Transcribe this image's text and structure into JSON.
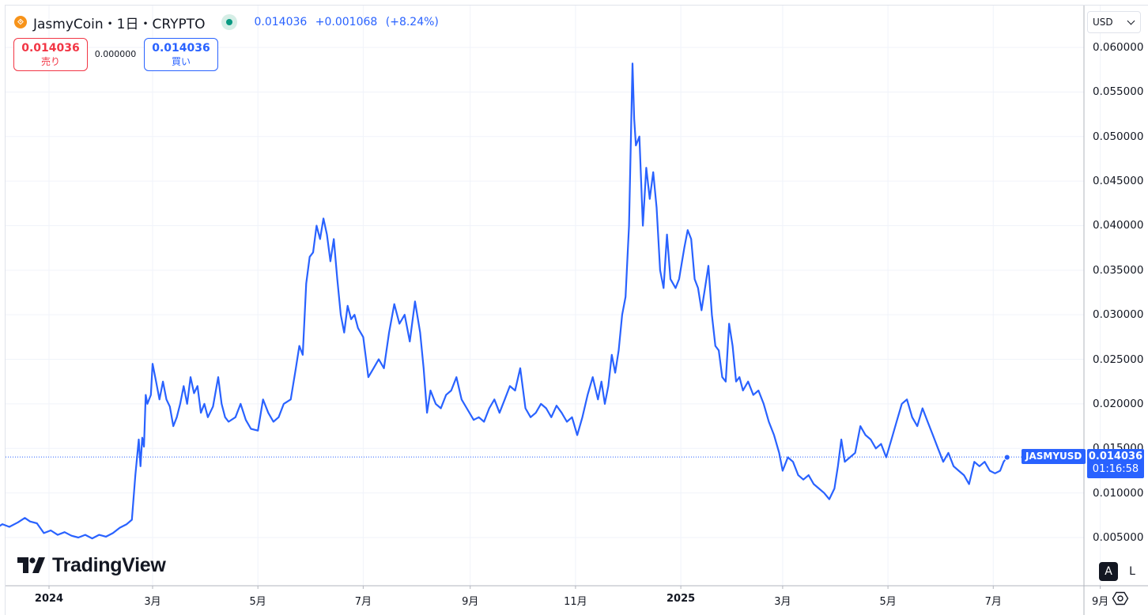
{
  "legend": {
    "coin_icon": "jasmy-coin-icon",
    "symbol": "JasmyCoin・1日・CRYPTO",
    "last": "0.014036",
    "change": "+0.001068",
    "change_pct": "(+8.24%)",
    "status": "market-open"
  },
  "trade": {
    "sell_price": "0.014036",
    "sell_label": "売り",
    "spread": "0.000000",
    "buy_price": "0.014036",
    "buy_label": "買い"
  },
  "currency": "USD",
  "price_tag": {
    "symbol": "JASMYUSD",
    "price": "0.014036",
    "countdown": "01:16:58"
  },
  "logo_text": "TradingView",
  "scale_buttons": {
    "auto": "A",
    "log": "L"
  },
  "colors": {
    "line": "#2962ff",
    "sell": "#f23645",
    "buy": "#2962ff",
    "grid": "#f0f3fa"
  },
  "chart_data": {
    "type": "line",
    "title": "JasmyCoin・1日・CRYPTO",
    "xlabel": "",
    "ylabel": "",
    "ylim": [
      0.0025,
      0.0625
    ],
    "y_ticks": [
      "0.060000",
      "0.055000",
      "0.050000",
      "0.045000",
      "0.040000",
      "0.035000",
      "0.030000",
      "0.025000",
      "0.020000",
      "0.015000",
      "0.010000",
      "0.005000"
    ],
    "x_tick_labels": [
      {
        "date": "2024-01-01",
        "label": "2024",
        "bold": true
      },
      {
        "date": "2024-03-01",
        "label": "3月"
      },
      {
        "date": "2024-05-01",
        "label": "5月"
      },
      {
        "date": "2024-07-01",
        "label": "7月"
      },
      {
        "date": "2024-09-01",
        "label": "9月"
      },
      {
        "date": "2024-11-01",
        "label": "11月"
      },
      {
        "date": "2025-01-01",
        "label": "2025",
        "bold": true
      },
      {
        "date": "2025-03-01",
        "label": "3月"
      },
      {
        "date": "2025-05-01",
        "label": "5月"
      },
      {
        "date": "2025-07-01",
        "label": "7月"
      },
      {
        "date": "2025-09-01",
        "label": "9月"
      }
    ],
    "grid": true,
    "series": [
      {
        "name": "JASMYUSD",
        "points": [
          [
            "2023-11-20",
            0.0049
          ],
          [
            "2023-11-23",
            0.0055
          ],
          [
            "2023-11-27",
            0.0061
          ],
          [
            "2023-12-01",
            0.006
          ],
          [
            "2023-12-05",
            0.0065
          ],
          [
            "2023-12-09",
            0.0062
          ],
          [
            "2023-12-14",
            0.0067
          ],
          [
            "2023-12-18",
            0.0072
          ],
          [
            "2023-12-21",
            0.0068
          ],
          [
            "2023-12-25",
            0.0066
          ],
          [
            "2023-12-29",
            0.0055
          ],
          [
            "2024-01-02",
            0.0058
          ],
          [
            "2024-01-06",
            0.0053
          ],
          [
            "2024-01-10",
            0.0056
          ],
          [
            "2024-01-14",
            0.0052
          ],
          [
            "2024-01-18",
            0.005
          ],
          [
            "2024-01-22",
            0.0053
          ],
          [
            "2024-01-26",
            0.0049
          ],
          [
            "2024-01-30",
            0.0053
          ],
          [
            "2024-02-03",
            0.0051
          ],
          [
            "2024-02-07",
            0.0055
          ],
          [
            "2024-02-11",
            0.0061
          ],
          [
            "2024-02-15",
            0.0065
          ],
          [
            "2024-02-18",
            0.007
          ],
          [
            "2024-02-20",
            0.012
          ],
          [
            "2024-02-22",
            0.016
          ],
          [
            "2024-02-23",
            0.013
          ],
          [
            "2024-02-24",
            0.0162
          ],
          [
            "2024-02-25",
            0.0152
          ],
          [
            "2024-02-26",
            0.021
          ],
          [
            "2024-02-27",
            0.02
          ],
          [
            "2024-02-29",
            0.021
          ],
          [
            "2024-03-01",
            0.0245
          ],
          [
            "2024-03-03",
            0.0225
          ],
          [
            "2024-03-05",
            0.0205
          ],
          [
            "2024-03-07",
            0.0225
          ],
          [
            "2024-03-09",
            0.0205
          ],
          [
            "2024-03-11",
            0.0197
          ],
          [
            "2024-03-13",
            0.0175
          ],
          [
            "2024-03-15",
            0.0185
          ],
          [
            "2024-03-17",
            0.02
          ],
          [
            "2024-03-19",
            0.022
          ],
          [
            "2024-03-21",
            0.02
          ],
          [
            "2024-03-23",
            0.023
          ],
          [
            "2024-03-25",
            0.0212
          ],
          [
            "2024-03-27",
            0.022
          ],
          [
            "2024-03-29",
            0.019
          ],
          [
            "2024-03-31",
            0.02
          ],
          [
            "2024-04-02",
            0.0185
          ],
          [
            "2024-04-05",
            0.0197
          ],
          [
            "2024-04-08",
            0.023
          ],
          [
            "2024-04-10",
            0.02
          ],
          [
            "2024-04-12",
            0.0185
          ],
          [
            "2024-04-14",
            0.018
          ],
          [
            "2024-04-18",
            0.0185
          ],
          [
            "2024-04-21",
            0.02
          ],
          [
            "2024-04-24",
            0.0182
          ],
          [
            "2024-04-27",
            0.0172
          ],
          [
            "2024-05-01",
            0.017
          ],
          [
            "2024-05-04",
            0.0205
          ],
          [
            "2024-05-07",
            0.019
          ],
          [
            "2024-05-10",
            0.018
          ],
          [
            "2024-05-13",
            0.0185
          ],
          [
            "2024-05-16",
            0.02
          ],
          [
            "2024-05-20",
            0.0205
          ],
          [
            "2024-05-23",
            0.024
          ],
          [
            "2024-05-25",
            0.0265
          ],
          [
            "2024-05-27",
            0.0255
          ],
          [
            "2024-05-29",
            0.0335
          ],
          [
            "2024-05-31",
            0.0365
          ],
          [
            "2024-06-02",
            0.037
          ],
          [
            "2024-06-04",
            0.04
          ],
          [
            "2024-06-06",
            0.0385
          ],
          [
            "2024-06-08",
            0.0408
          ],
          [
            "2024-06-10",
            0.039
          ],
          [
            "2024-06-12",
            0.036
          ],
          [
            "2024-06-14",
            0.0385
          ],
          [
            "2024-06-16",
            0.034
          ],
          [
            "2024-06-18",
            0.03
          ],
          [
            "2024-06-20",
            0.028
          ],
          [
            "2024-06-22",
            0.031
          ],
          [
            "2024-06-24",
            0.0295
          ],
          [
            "2024-06-26",
            0.03
          ],
          [
            "2024-06-28",
            0.0285
          ],
          [
            "2024-07-01",
            0.0275
          ],
          [
            "2024-07-04",
            0.023
          ],
          [
            "2024-07-07",
            0.024
          ],
          [
            "2024-07-10",
            0.025
          ],
          [
            "2024-07-13",
            0.024
          ],
          [
            "2024-07-16",
            0.028
          ],
          [
            "2024-07-19",
            0.0312
          ],
          [
            "2024-07-22",
            0.029
          ],
          [
            "2024-07-25",
            0.03
          ],
          [
            "2024-07-28",
            0.027
          ],
          [
            "2024-07-31",
            0.0315
          ],
          [
            "2024-08-03",
            0.028
          ],
          [
            "2024-08-05",
            0.024
          ],
          [
            "2024-08-07",
            0.019
          ],
          [
            "2024-08-09",
            0.0215
          ],
          [
            "2024-08-12",
            0.02
          ],
          [
            "2024-08-15",
            0.0195
          ],
          [
            "2024-08-18",
            0.021
          ],
          [
            "2024-08-21",
            0.0215
          ],
          [
            "2024-08-24",
            0.023
          ],
          [
            "2024-08-27",
            0.0205
          ],
          [
            "2024-08-30",
            0.0195
          ],
          [
            "2024-09-03",
            0.0182
          ],
          [
            "2024-09-06",
            0.0185
          ],
          [
            "2024-09-09",
            0.018
          ],
          [
            "2024-09-12",
            0.0195
          ],
          [
            "2024-09-15",
            0.0205
          ],
          [
            "2024-09-18",
            0.019
          ],
          [
            "2024-09-21",
            0.0205
          ],
          [
            "2024-09-24",
            0.022
          ],
          [
            "2024-09-27",
            0.0215
          ],
          [
            "2024-09-30",
            0.024
          ],
          [
            "2024-10-03",
            0.0195
          ],
          [
            "2024-10-06",
            0.0185
          ],
          [
            "2024-10-09",
            0.019
          ],
          [
            "2024-10-12",
            0.02
          ],
          [
            "2024-10-15",
            0.0195
          ],
          [
            "2024-10-18",
            0.0185
          ],
          [
            "2024-10-21",
            0.0198
          ],
          [
            "2024-10-24",
            0.019
          ],
          [
            "2024-10-27",
            0.018
          ],
          [
            "2024-10-30",
            0.0185
          ],
          [
            "2024-11-02",
            0.0165
          ],
          [
            "2024-11-05",
            0.0185
          ],
          [
            "2024-11-08",
            0.021
          ],
          [
            "2024-11-11",
            0.023
          ],
          [
            "2024-11-14",
            0.0205
          ],
          [
            "2024-11-16",
            0.0225
          ],
          [
            "2024-11-18",
            0.02
          ],
          [
            "2024-11-20",
            0.022
          ],
          [
            "2024-11-22",
            0.0255
          ],
          [
            "2024-11-24",
            0.0235
          ],
          [
            "2024-11-26",
            0.026
          ],
          [
            "2024-11-28",
            0.03
          ],
          [
            "2024-11-30",
            0.032
          ],
          [
            "2024-12-02",
            0.04
          ],
          [
            "2024-12-04",
            0.0582
          ],
          [
            "2024-12-05",
            0.052
          ],
          [
            "2024-12-06",
            0.049
          ],
          [
            "2024-12-08",
            0.05
          ],
          [
            "2024-12-10",
            0.04
          ],
          [
            "2024-12-12",
            0.0465
          ],
          [
            "2024-12-14",
            0.043
          ],
          [
            "2024-12-16",
            0.046
          ],
          [
            "2024-12-18",
            0.042
          ],
          [
            "2024-12-20",
            0.035
          ],
          [
            "2024-12-22",
            0.033
          ],
          [
            "2024-12-24",
            0.039
          ],
          [
            "2024-12-26",
            0.034
          ],
          [
            "2024-12-29",
            0.033
          ],
          [
            "2024-12-31",
            0.034
          ],
          [
            "2025-01-03",
            0.0375
          ],
          [
            "2025-01-05",
            0.0395
          ],
          [
            "2025-01-07",
            0.0385
          ],
          [
            "2025-01-09",
            0.034
          ],
          [
            "2025-01-11",
            0.033
          ],
          [
            "2025-01-13",
            0.0305
          ],
          [
            "2025-01-15",
            0.033
          ],
          [
            "2025-01-17",
            0.0355
          ],
          [
            "2025-01-19",
            0.03
          ],
          [
            "2025-01-21",
            0.0265
          ],
          [
            "2025-01-23",
            0.026
          ],
          [
            "2025-01-25",
            0.023
          ],
          [
            "2025-01-27",
            0.0225
          ],
          [
            "2025-01-29",
            0.029
          ],
          [
            "2025-01-31",
            0.0265
          ],
          [
            "2025-02-02",
            0.0225
          ],
          [
            "2025-02-04",
            0.023
          ],
          [
            "2025-02-06",
            0.0215
          ],
          [
            "2025-02-09",
            0.0225
          ],
          [
            "2025-02-12",
            0.021
          ],
          [
            "2025-02-15",
            0.0215
          ],
          [
            "2025-02-18",
            0.02
          ],
          [
            "2025-02-21",
            0.018
          ],
          [
            "2025-02-24",
            0.0165
          ],
          [
            "2025-02-27",
            0.0145
          ],
          [
            "2025-03-01",
            0.0125
          ],
          [
            "2025-03-04",
            0.014
          ],
          [
            "2025-03-07",
            0.0135
          ],
          [
            "2025-03-10",
            0.012
          ],
          [
            "2025-03-13",
            0.0115
          ],
          [
            "2025-03-16",
            0.012
          ],
          [
            "2025-03-19",
            0.011
          ],
          [
            "2025-03-22",
            0.0105
          ],
          [
            "2025-03-25",
            0.01
          ],
          [
            "2025-03-28",
            0.0093
          ],
          [
            "2025-03-31",
            0.0105
          ],
          [
            "2025-04-02",
            0.013
          ],
          [
            "2025-04-04",
            0.016
          ],
          [
            "2025-04-06",
            0.0135
          ],
          [
            "2025-04-09",
            0.014
          ],
          [
            "2025-04-12",
            0.0145
          ],
          [
            "2025-04-15",
            0.0175
          ],
          [
            "2025-04-18",
            0.0165
          ],
          [
            "2025-04-21",
            0.016
          ],
          [
            "2025-04-24",
            0.015
          ],
          [
            "2025-04-27",
            0.0155
          ],
          [
            "2025-04-30",
            0.014
          ],
          [
            "2025-05-03",
            0.016
          ],
          [
            "2025-05-06",
            0.018
          ],
          [
            "2025-05-09",
            0.02
          ],
          [
            "2025-05-12",
            0.0205
          ],
          [
            "2025-05-15",
            0.0185
          ],
          [
            "2025-05-18",
            0.0175
          ],
          [
            "2025-05-21",
            0.0195
          ],
          [
            "2025-05-24",
            0.018
          ],
          [
            "2025-05-27",
            0.0165
          ],
          [
            "2025-05-30",
            0.015
          ],
          [
            "2025-06-02",
            0.0135
          ],
          [
            "2025-06-05",
            0.0145
          ],
          [
            "2025-06-08",
            0.013
          ],
          [
            "2025-06-11",
            0.0125
          ],
          [
            "2025-06-14",
            0.012
          ],
          [
            "2025-06-17",
            0.011
          ],
          [
            "2025-06-20",
            0.0135
          ],
          [
            "2025-06-23",
            0.013
          ],
          [
            "2025-06-26",
            0.0135
          ],
          [
            "2025-06-29",
            0.0125
          ],
          [
            "2025-07-02",
            0.0122
          ],
          [
            "2025-07-05",
            0.0125
          ],
          [
            "2025-07-07",
            0.0135
          ],
          [
            "2025-07-09",
            0.014
          ]
        ]
      }
    ],
    "last_value": 0.014036
  }
}
